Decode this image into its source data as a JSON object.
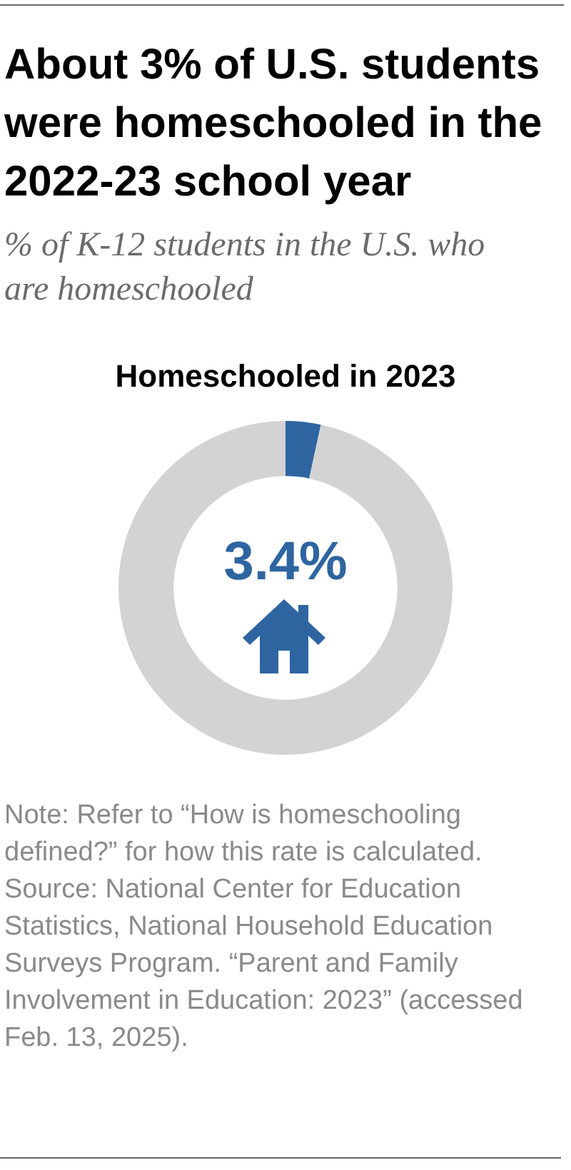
{
  "chart_data": {
    "type": "donut",
    "title": "About 3% of U.S. students were homeschooled in the 2022-23 school year",
    "subtitle": "% of K-12 students in the U.S. who are homeschooled",
    "categories": [
      null,
      null
    ],
    "values": [
      3.4,
      96.6
    ],
    "colors": [
      "#2e65a1",
      "#d3d3d3"
    ],
    "value_labels": [
      "3.4%",
      null
    ],
    "annotations": [
      "Homeschooled in 2023",
      "Note: Refer to “How is homeschooling defined?” for how this rate is calculated.",
      "Source: National Center for Education Statistics, National Household Education Surveys Program. “Parent and Family Involvement in Education: 2023” (accessed Feb. 13, 2025)."
    ]
  }
}
